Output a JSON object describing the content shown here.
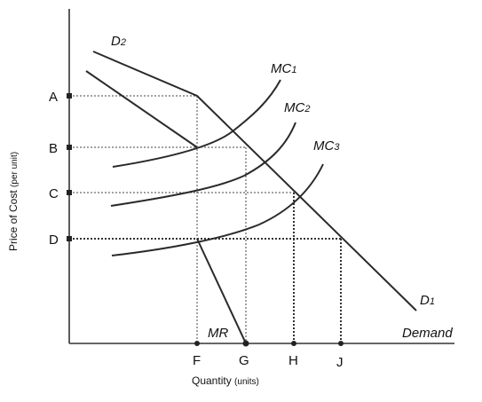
{
  "axes": {
    "x_title": "Quantity",
    "x_unit": "(units)",
    "y_title": "Price of Cost",
    "y_unit": "(per unit)"
  },
  "y_points": [
    "A",
    "B",
    "C",
    "D"
  ],
  "x_points": [
    "F",
    "G",
    "H",
    "J"
  ],
  "curves": {
    "d2": {
      "main": "D",
      "sub": "2"
    },
    "d1": {
      "main": "D",
      "sub": "1"
    },
    "mc1": {
      "main": "MC",
      "sub": "1"
    },
    "mc2": {
      "main": "MC",
      "sub": "2"
    },
    "mc3": {
      "main": "MC",
      "sub": "3"
    },
    "mr": "MR",
    "demand": "Demand"
  }
}
